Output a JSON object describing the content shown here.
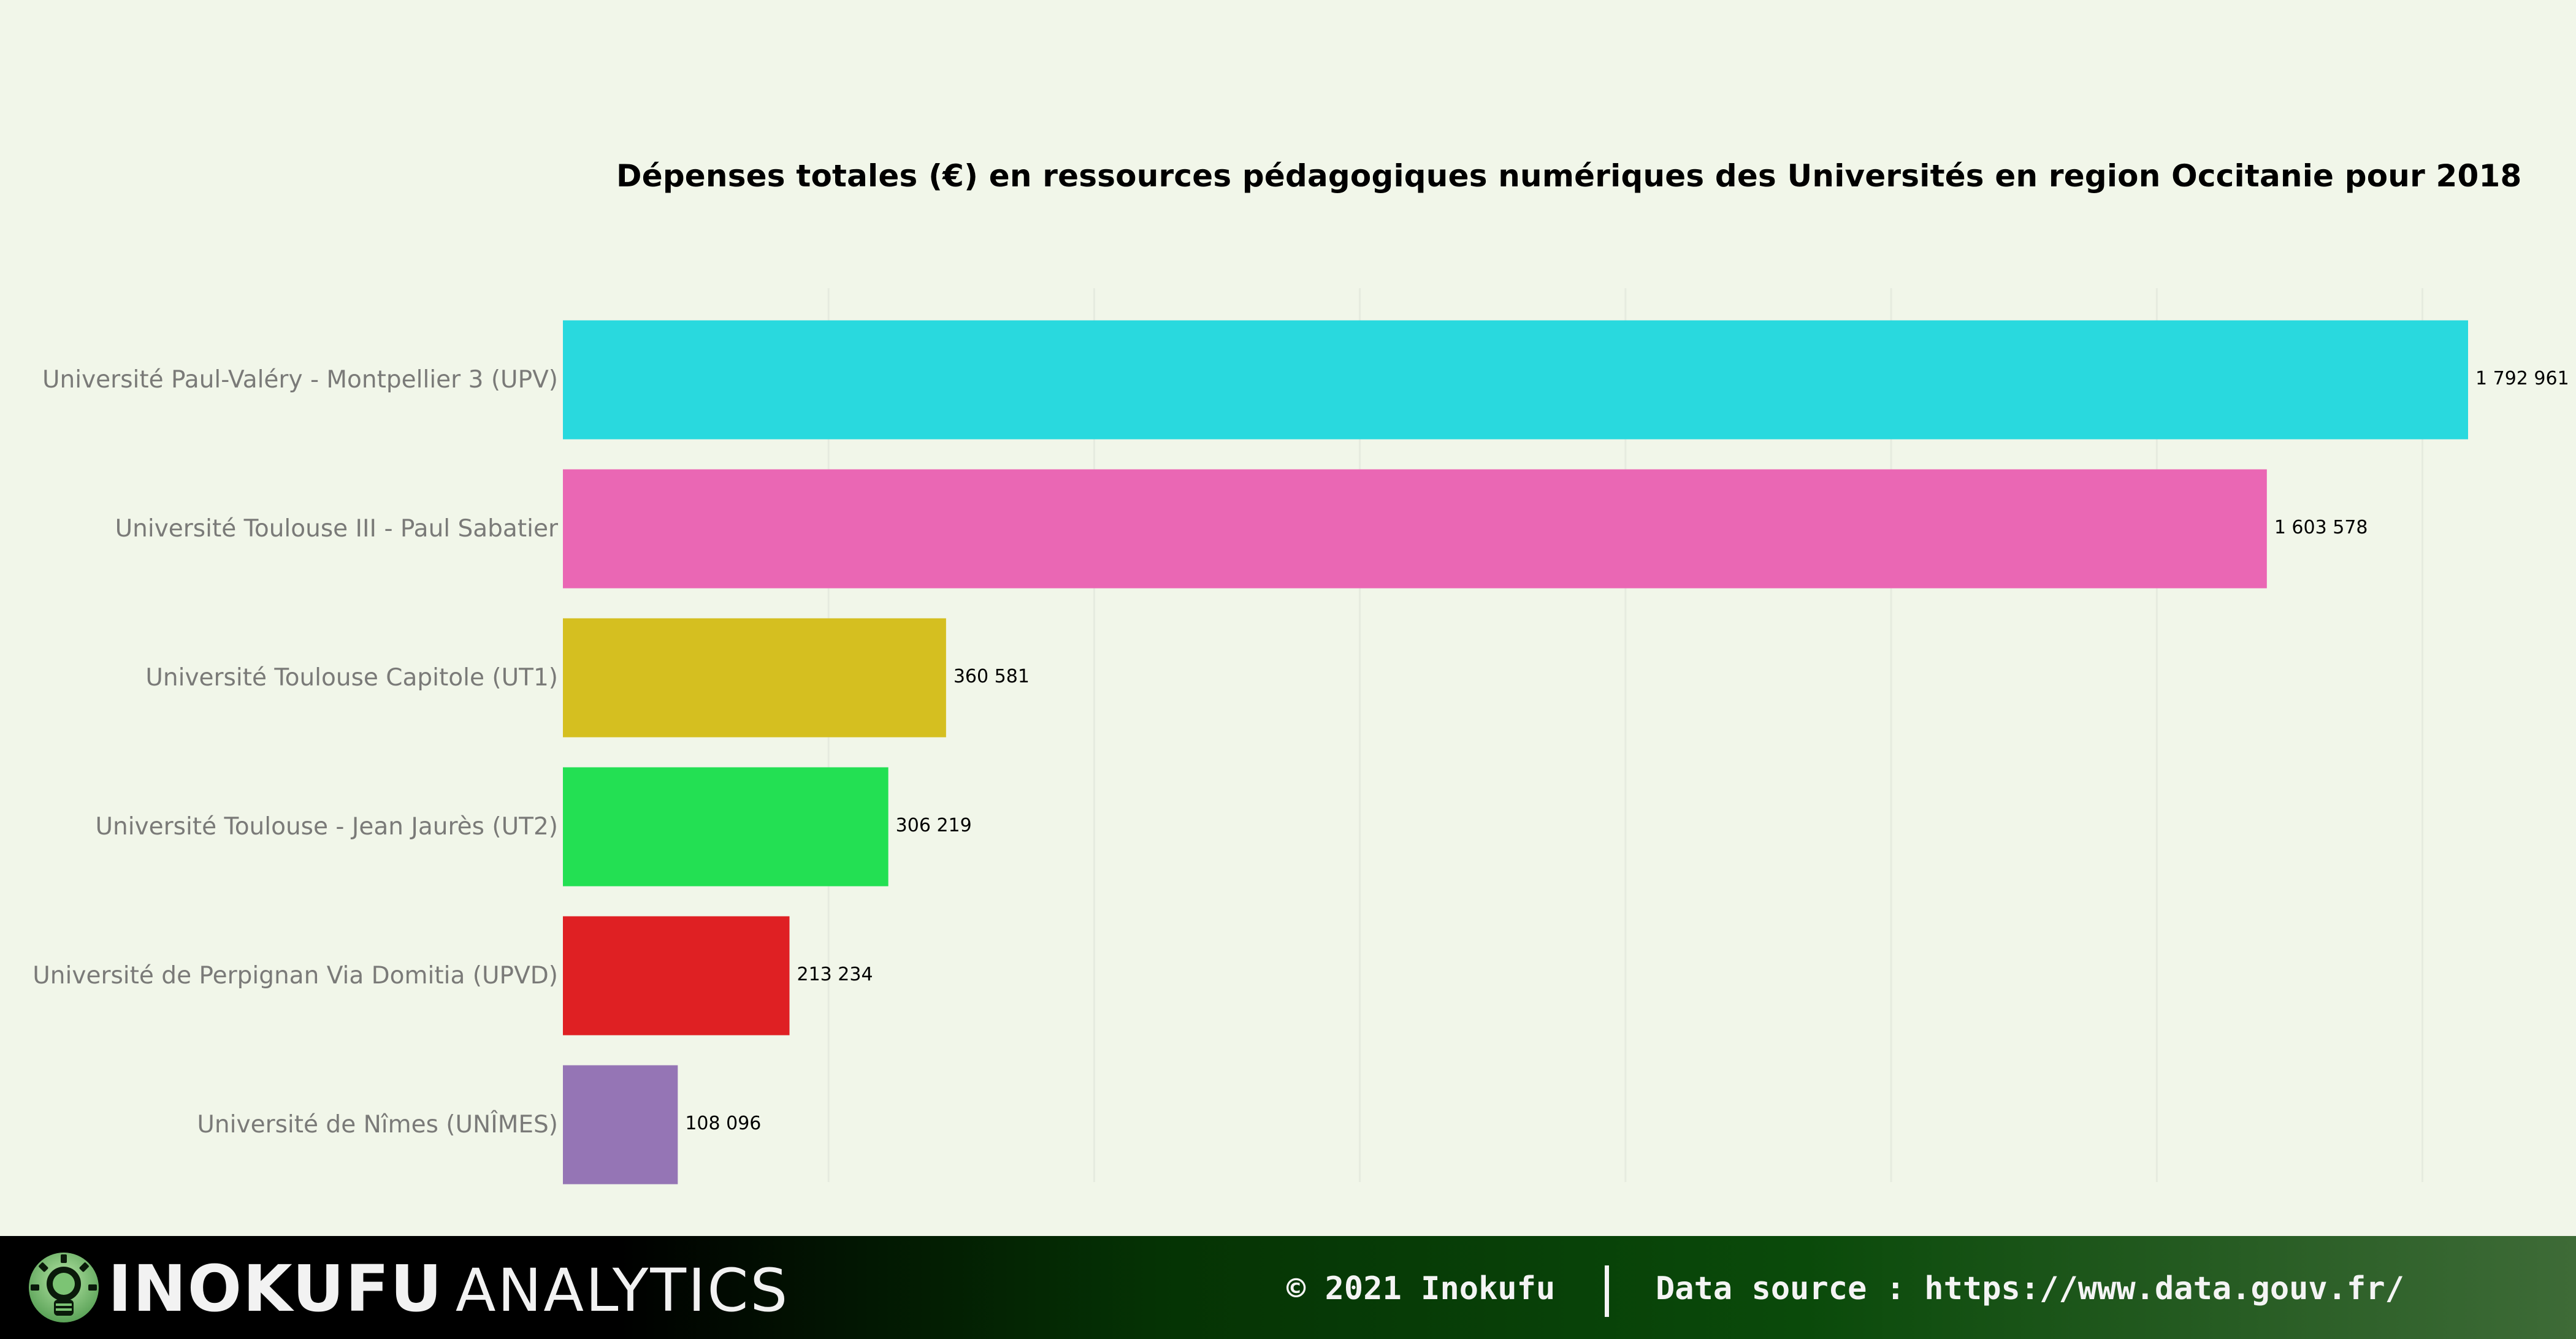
{
  "chart_data": {
    "type": "bar",
    "orientation": "horizontal",
    "title": "Dépenses totales (€) en ressources pédagogiques numériques des Universités en region Occitanie pour 2018",
    "xlabel": "",
    "ylabel": "",
    "xlim": [
      0,
      1850000
    ],
    "grid": true,
    "categories": [
      "Université Paul-Valéry - Montpellier 3 (UPV)",
      "Université Toulouse III - Paul Sabatier",
      "Université Toulouse Capitole (UT1)",
      "Université Toulouse - Jean Jaurès (UT2)",
      "Université de Perpignan Via Domitia (UPVD)",
      "Université de Nîmes (UNÎMES)"
    ],
    "values": [
      1792961,
      1603578,
      360581,
      306219,
      213234,
      108096
    ],
    "data_labels": [
      "1 792 961",
      "1 603 578",
      "360 581",
      "306 219",
      "213 234",
      "108 096"
    ],
    "colors": [
      "#29d9de",
      "#ea67b4",
      "#d5bf20",
      "#23e053",
      "#df2023",
      "#9575b5"
    ]
  },
  "footer": {
    "brand_bold": "INOKUFU",
    "brand_light": "ANALYTICS",
    "copyright": "© 2021 Inokufu",
    "source": "Data source : https://www.data.gouv.fr/",
    "logo_icon": "lightbulb-gear-icon"
  }
}
